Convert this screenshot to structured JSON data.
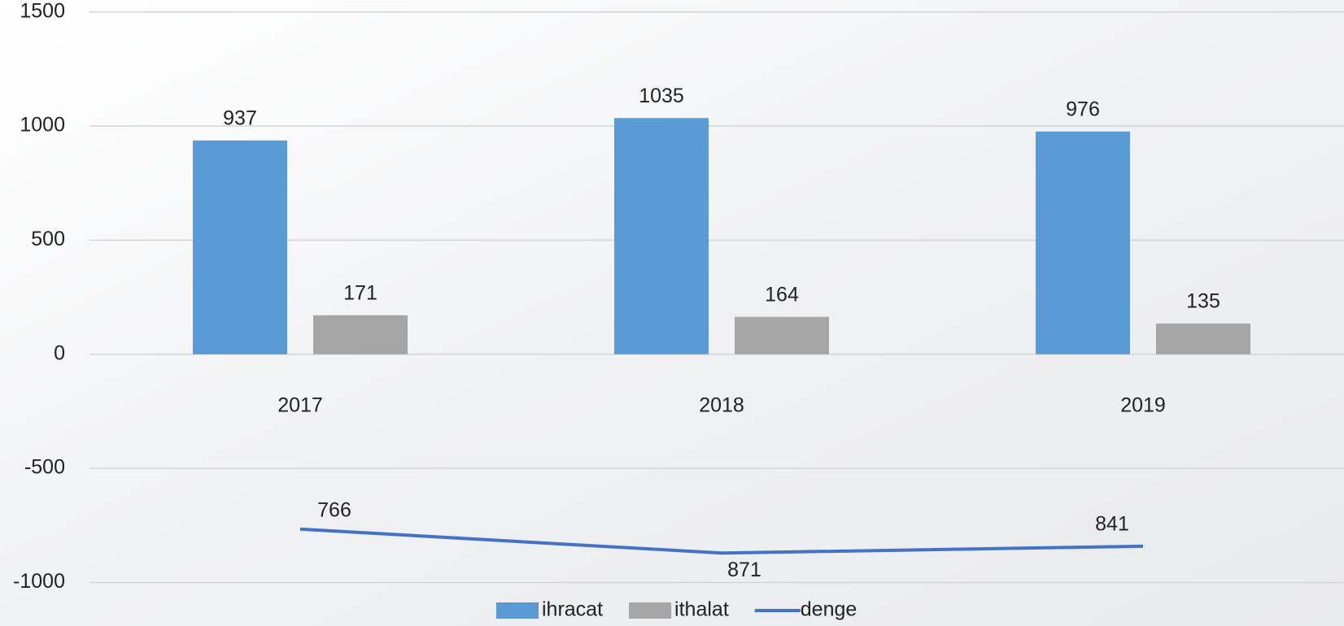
{
  "chart_data": {
    "type": "bar",
    "categories": [
      "2017",
      "2018",
      "2019"
    ],
    "series": [
      {
        "name": "ihracat",
        "type": "bar",
        "color": "#5b9bd5",
        "values": [
          937,
          1035,
          976
        ]
      },
      {
        "name": "ithalat",
        "type": "bar",
        "color": "#a5a5a5",
        "values": [
          171,
          164,
          135
        ]
      },
      {
        "name": "denge",
        "type": "line",
        "color": "#4472c4",
        "values": [
          -766,
          -871,
          -841
        ],
        "value_labels": [
          "766",
          "871",
          "841"
        ]
      }
    ],
    "ylim": [
      -1000,
      1500
    ],
    "yticks": [
      -1000,
      -500,
      0,
      500,
      1000,
      1500
    ],
    "grid": true,
    "legend": "bottom"
  }
}
